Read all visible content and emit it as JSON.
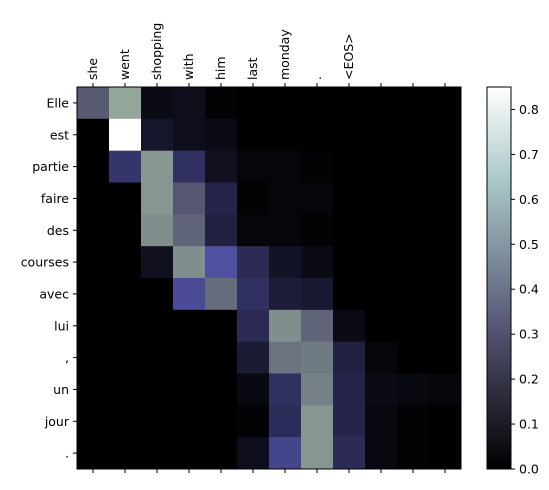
{
  "chart_data": {
    "type": "heatmap",
    "x_labels": [
      "she",
      "went",
      "shopping",
      "with",
      "him",
      "last",
      "monday",
      ".",
      "<EOS>",
      "",
      "",
      ""
    ],
    "y_labels": [
      "Elle",
      "est",
      "partie",
      "faire",
      "des",
      "courses",
      "avec",
      "lui",
      ",",
      "un",
      "jour",
      "."
    ],
    "values": [
      [
        0.33,
        0.55,
        0.04,
        0.05,
        0.01,
        0.0,
        0.0,
        0.0,
        0.0,
        0.0,
        0.0,
        0.0
      ],
      [
        0.0,
        0.85,
        0.08,
        0.05,
        0.04,
        0.0,
        0.0,
        0.0,
        0.0,
        0.0,
        0.0,
        0.0
      ],
      [
        0.0,
        0.2,
        0.5,
        0.18,
        0.06,
        0.02,
        0.02,
        0.01,
        0.0,
        0.0,
        0.0,
        0.0
      ],
      [
        0.0,
        0.0,
        0.5,
        0.32,
        0.14,
        0.01,
        0.02,
        0.02,
        0.0,
        0.0,
        0.0,
        0.0
      ],
      [
        0.0,
        0.0,
        0.48,
        0.36,
        0.12,
        0.02,
        0.02,
        0.01,
        0.0,
        0.0,
        0.0,
        0.0
      ],
      [
        0.0,
        0.0,
        0.06,
        0.48,
        0.3,
        0.16,
        0.07,
        0.04,
        0.0,
        0.0,
        0.0,
        0.0
      ],
      [
        0.0,
        0.0,
        0.0,
        0.28,
        0.38,
        0.18,
        0.11,
        0.09,
        0.0,
        0.0,
        0.0,
        0.0
      ],
      [
        0.0,
        0.0,
        0.0,
        0.0,
        0.0,
        0.16,
        0.48,
        0.36,
        0.04,
        0.0,
        0.0,
        0.0
      ],
      [
        0.0,
        0.0,
        0.0,
        0.0,
        0.0,
        0.1,
        0.4,
        0.42,
        0.12,
        0.02,
        0.0,
        0.0
      ],
      [
        0.0,
        0.0,
        0.0,
        0.0,
        0.0,
        0.03,
        0.18,
        0.44,
        0.14,
        0.04,
        0.03,
        0.02
      ],
      [
        0.0,
        0.0,
        0.0,
        0.0,
        0.0,
        0.01,
        0.17,
        0.5,
        0.14,
        0.03,
        0.01,
        0.0
      ],
      [
        0.0,
        0.0,
        0.0,
        0.0,
        0.0,
        0.05,
        0.26,
        0.5,
        0.16,
        0.03,
        0.01,
        0.0
      ]
    ],
    "colormap": "bone",
    "colorbar": {
      "range": [
        0.0,
        0.85
      ],
      "ticks": [
        "0.0",
        "0.1",
        "0.2",
        "0.3",
        "0.4",
        "0.5",
        "0.6",
        "0.7",
        "0.8"
      ]
    },
    "grid": false
  }
}
